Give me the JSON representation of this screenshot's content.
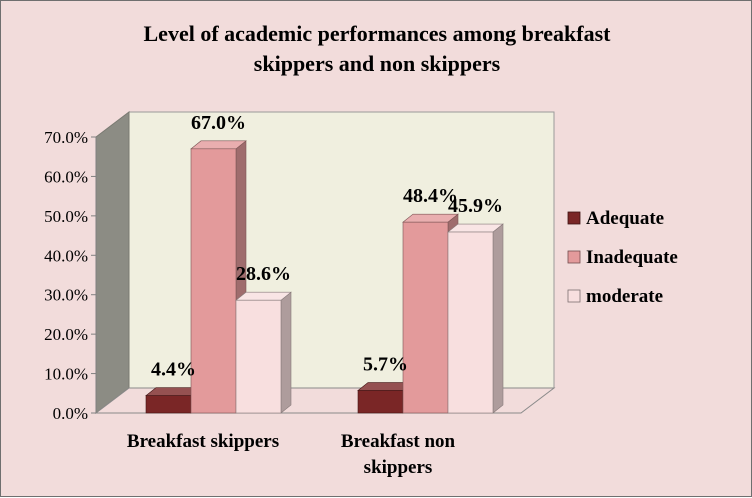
{
  "chart_data": {
    "type": "bar",
    "title_lines": [
      "Level of academic performances among breakfast",
      "skippers and non skippers"
    ],
    "categories": [
      [
        "Breakfast skippers"
      ],
      [
        "Breakfast non",
        "skippers"
      ]
    ],
    "series": [
      {
        "name": "Adequate",
        "values": [
          4.4,
          5.7
        ],
        "color": "#7a2626"
      },
      {
        "name": "Inadequate",
        "values": [
          67.0,
          48.4
        ],
        "color": "#e39a9b"
      },
      {
        "name": "moderate",
        "values": [
          28.6,
          45.9
        ],
        "color": "#f8dfdf"
      }
    ],
    "data_labels": [
      [
        "4.4%",
        "5.7%"
      ],
      [
        "67.0%",
        "48.4%"
      ],
      [
        "28.6%",
        "45.9%"
      ]
    ],
    "y_ticks": [
      "0.0%",
      "10.0%",
      "20.0%",
      "30.0%",
      "40.0%",
      "50.0%",
      "60.0%",
      "70.0%"
    ],
    "ylim": [
      0,
      70
    ],
    "grid": false,
    "legend_position": "right",
    "colors": {
      "background": "#f2dcdb",
      "plot_back_wall": "#f0efdf",
      "plot_side_wall": "#8c8c84",
      "floor": "#f2dcdb"
    }
  }
}
